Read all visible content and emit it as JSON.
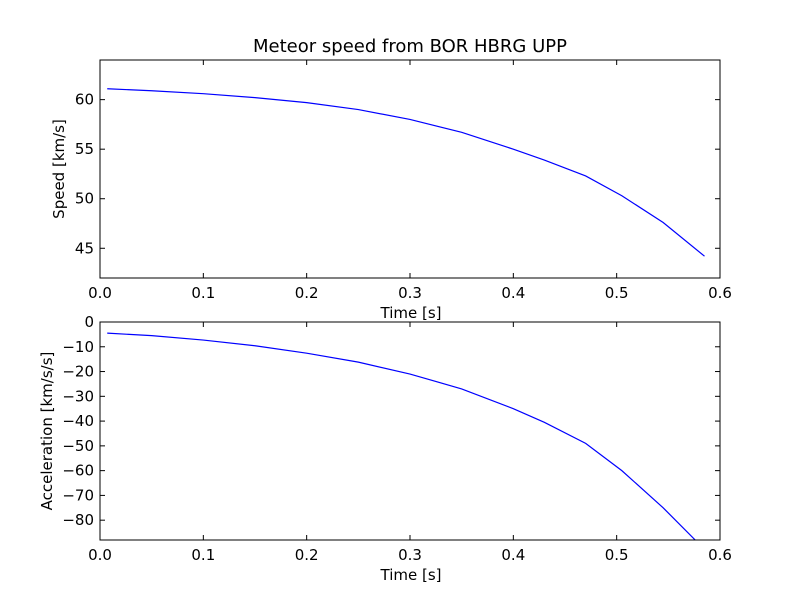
{
  "chart_data": [
    {
      "type": "line",
      "title": "Meteor speed from  BOR HBRG UPP",
      "xlabel": "Time [s]",
      "ylabel": "Speed [km/s]",
      "xlim": [
        0.0,
        0.6
      ],
      "ylim": [
        42.0,
        64.0
      ],
      "xticks": [
        0.0,
        0.1,
        0.2,
        0.3,
        0.4,
        0.5,
        0.6
      ],
      "yticks": [
        45,
        50,
        55,
        60
      ],
      "xtick_labels": [
        "0.0",
        "0.1",
        "0.2",
        "0.3",
        "0.4",
        "0.5",
        "0.6"
      ],
      "ytick_labels": [
        "45",
        "50",
        "55",
        "60"
      ],
      "grid": false,
      "series": [
        {
          "color": "#0000ff",
          "x": [
            0.007,
            0.05,
            0.1,
            0.15,
            0.2,
            0.25,
            0.3,
            0.35,
            0.4,
            0.43,
            0.47,
            0.505,
            0.545,
            0.585
          ],
          "y": [
            61.1,
            60.9,
            60.6,
            60.2,
            59.7,
            59.0,
            58.0,
            56.7,
            55.0,
            53.9,
            52.3,
            50.3,
            47.6,
            44.2
          ]
        }
      ]
    },
    {
      "type": "line",
      "title": "",
      "xlabel": "Time [s]",
      "ylabel": "Acceleration [km/s/s]",
      "xlim": [
        0.0,
        0.6
      ],
      "ylim": [
        -88.0,
        0.0
      ],
      "xticks": [
        0.0,
        0.1,
        0.2,
        0.3,
        0.4,
        0.5,
        0.6
      ],
      "yticks": [
        0,
        -10,
        -20,
        -30,
        -40,
        -50,
        -60,
        -70,
        -80
      ],
      "xtick_labels": [
        "0.0",
        "0.1",
        "0.2",
        "0.3",
        "0.4",
        "0.5",
        "0.6"
      ],
      "ytick_labels": [
        "0",
        "−10",
        "−20",
        "−30",
        "−40",
        "−50",
        "−60",
        "−70",
        "−80"
      ],
      "grid": false,
      "series": [
        {
          "color": "#0000ff",
          "x": [
            0.007,
            0.05,
            0.1,
            0.15,
            0.2,
            0.25,
            0.3,
            0.35,
            0.4,
            0.43,
            0.47,
            0.505,
            0.545,
            0.576
          ],
          "y": [
            -4.5,
            -5.5,
            -7.3,
            -9.6,
            -12.6,
            -16.2,
            -21.0,
            -27.0,
            -35.0,
            -40.5,
            -49.0,
            -60.0,
            -75.0,
            -88.0
          ]
        }
      ]
    }
  ]
}
